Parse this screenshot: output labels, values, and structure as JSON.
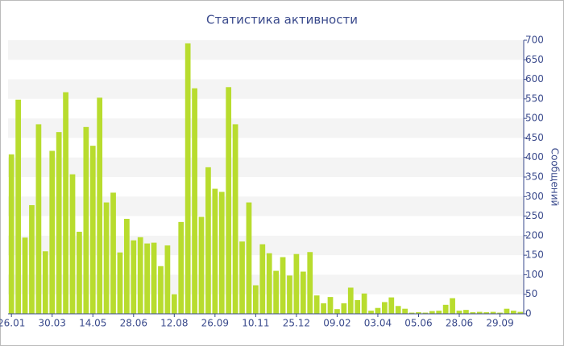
{
  "chart_data": {
    "type": "bar",
    "title": "Статистика активности",
    "y_axis_label": "Сообщений",
    "categories": [
      "26.01",
      null,
      null,
      null,
      null,
      null,
      "30.03",
      null,
      null,
      null,
      null,
      null,
      "14.05",
      null,
      null,
      null,
      null,
      null,
      "28.06",
      null,
      null,
      null,
      null,
      null,
      "12.08",
      null,
      null,
      null,
      null,
      null,
      "26.09",
      null,
      null,
      null,
      null,
      null,
      "10.11",
      null,
      null,
      null,
      null,
      null,
      "25.12",
      null,
      null,
      null,
      null,
      null,
      "09.02",
      null,
      null,
      null,
      null,
      null,
      "03.04",
      null,
      null,
      null,
      null,
      null,
      "05.06",
      null,
      null,
      null,
      null,
      null,
      "28.06",
      null,
      null,
      null,
      null,
      null,
      "29.09",
      null,
      null,
      null
    ],
    "values": [
      408,
      548,
      195,
      278,
      485,
      160,
      417,
      465,
      567,
      357,
      210,
      478,
      430,
      553,
      285,
      310,
      157,
      243,
      188,
      196,
      180,
      182,
      122,
      175,
      50,
      235,
      692,
      577,
      248,
      375,
      320,
      312,
      580,
      485,
      185,
      285,
      73,
      178,
      155,
      110,
      145,
      98,
      153,
      108,
      158,
      47,
      27,
      43,
      12,
      27,
      67,
      35,
      52,
      8,
      15,
      30,
      42,
      20,
      13,
      3,
      4,
      3,
      7,
      8,
      23,
      40,
      8,
      10,
      4,
      5,
      4,
      5,
      3,
      13,
      8,
      5
    ],
    "color": "#b8dc2e",
    "ylim": [
      0,
      700
    ],
    "yticks": [
      0,
      50,
      100,
      150,
      200,
      250,
      300,
      350,
      400,
      450,
      500,
      550,
      600,
      650,
      700
    ],
    "grid": true
  }
}
